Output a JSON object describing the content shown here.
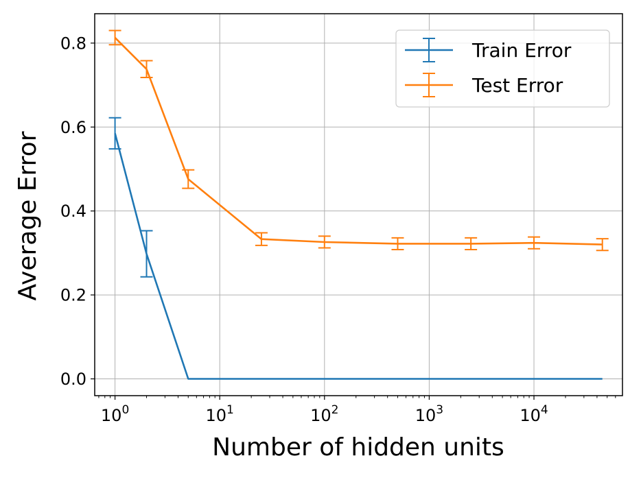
{
  "chart_data": {
    "type": "line",
    "xlabel": "Number of hidden units",
    "ylabel": "Average Error",
    "xscale": "log",
    "xlim": [
      0.64,
      70000
    ],
    "ylim": [
      -0.04,
      0.87
    ],
    "grid": true,
    "legend_position": "top-right",
    "x_ticks": [
      {
        "value": 1,
        "base": "10",
        "exp": "0"
      },
      {
        "value": 10,
        "base": "10",
        "exp": "1"
      },
      {
        "value": 100,
        "base": "10",
        "exp": "2"
      },
      {
        "value": 1000,
        "base": "10",
        "exp": "3"
      },
      {
        "value": 10000,
        "base": "10",
        "exp": "4"
      }
    ],
    "y_ticks": [
      {
        "value": 0.0,
        "label": "0.0"
      },
      {
        "value": 0.2,
        "label": "0.2"
      },
      {
        "value": 0.4,
        "label": "0.4"
      },
      {
        "value": 0.6,
        "label": "0.6"
      },
      {
        "value": 0.8,
        "label": "0.8"
      }
    ],
    "series": [
      {
        "name": "Train Error",
        "color": "#1f77b4",
        "points": [
          {
            "x": 1,
            "y": 0.585,
            "err": 0.037
          },
          {
            "x": 2,
            "y": 0.298,
            "err": 0.055
          },
          {
            "x": 5,
            "y": 0.0,
            "err": 0.0
          },
          {
            "x": 25,
            "y": 0.0,
            "err": 0.0
          },
          {
            "x": 100,
            "y": 0.0,
            "err": 0.0
          },
          {
            "x": 500,
            "y": 0.0,
            "err": 0.0
          },
          {
            "x": 2500,
            "y": 0.0,
            "err": 0.0
          },
          {
            "x": 10000,
            "y": 0.0,
            "err": 0.0
          },
          {
            "x": 45000,
            "y": 0.0,
            "err": 0.0
          }
        ]
      },
      {
        "name": "Test Error",
        "color": "#ff7f0e",
        "points": [
          {
            "x": 1,
            "y": 0.813,
            "err": 0.017
          },
          {
            "x": 2,
            "y": 0.738,
            "err": 0.02
          },
          {
            "x": 5,
            "y": 0.476,
            "err": 0.022
          },
          {
            "x": 25,
            "y": 0.333,
            "err": 0.015
          },
          {
            "x": 100,
            "y": 0.326,
            "err": 0.014
          },
          {
            "x": 500,
            "y": 0.322,
            "err": 0.014
          },
          {
            "x": 2500,
            "y": 0.322,
            "err": 0.014
          },
          {
            "x": 10000,
            "y": 0.324,
            "err": 0.014
          },
          {
            "x": 45000,
            "y": 0.32,
            "err": 0.014
          }
        ]
      }
    ]
  }
}
